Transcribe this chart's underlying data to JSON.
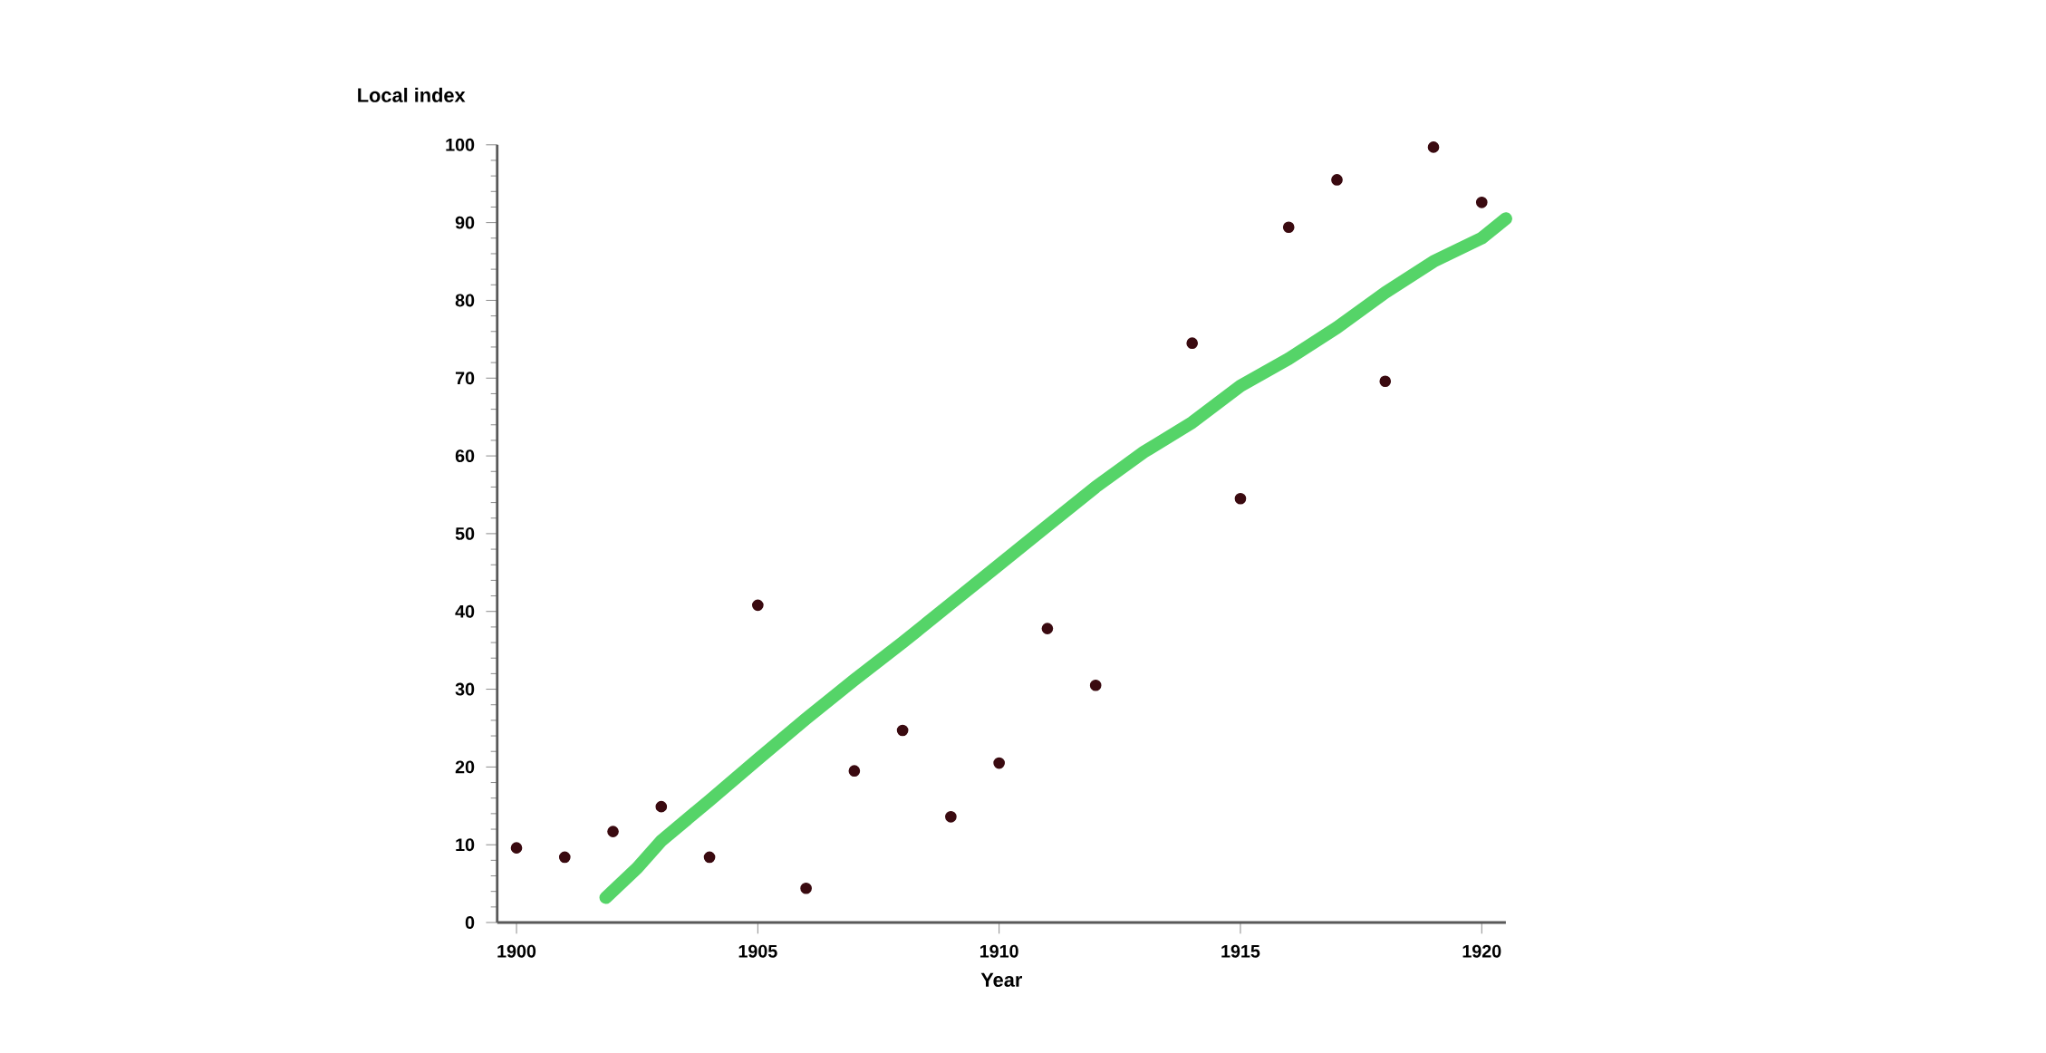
{
  "chart_data": {
    "type": "scatter",
    "xlabel": "Year",
    "ylabel": "Local index",
    "x": [
      1900,
      1901,
      1902,
      1903,
      1904,
      1905,
      1906,
      1907,
      1908,
      1909,
      1910,
      1911,
      1912,
      1914,
      1915,
      1916,
      1917,
      1918,
      1919,
      1920
    ],
    "series": [
      {
        "color": "#3a0a10",
        "values": [
          9.6,
          8.4,
          11.7,
          14.9,
          8.4,
          40.8,
          4.4,
          19.5,
          24.7,
          13.6,
          20.5,
          37.8,
          30.5,
          74.5,
          54.5,
          89.4,
          95.5,
          69.6,
          99.7,
          92.6
        ]
      },
      {
        "type": "line",
        "color": "#55d468",
        "x": [
          1901.85,
          1902.5,
          1903,
          1904,
          1905,
          1906,
          1907,
          1908,
          1909,
          1910,
          1911,
          1912,
          1913,
          1914,
          1915,
          1916,
          1917,
          1918,
          1919,
          1920,
          1920.5
        ],
        "values": [
          3.2,
          7,
          10.5,
          15.7,
          21,
          26.2,
          31.2,
          36,
          41,
          46,
          51,
          56,
          60.5,
          64.3,
          69,
          72.5,
          76.5,
          81,
          85,
          88,
          90.5
        ]
      }
    ],
    "xlim": [
      1899.6,
      1920.5
    ],
    "ylim": [
      0,
      100
    ],
    "xticks": [
      1900,
      1905,
      1910,
      1915,
      1920
    ],
    "yticks": [
      0,
      10,
      20,
      30,
      40,
      50,
      60,
      70,
      80,
      90,
      100
    ],
    "grid": false
  }
}
